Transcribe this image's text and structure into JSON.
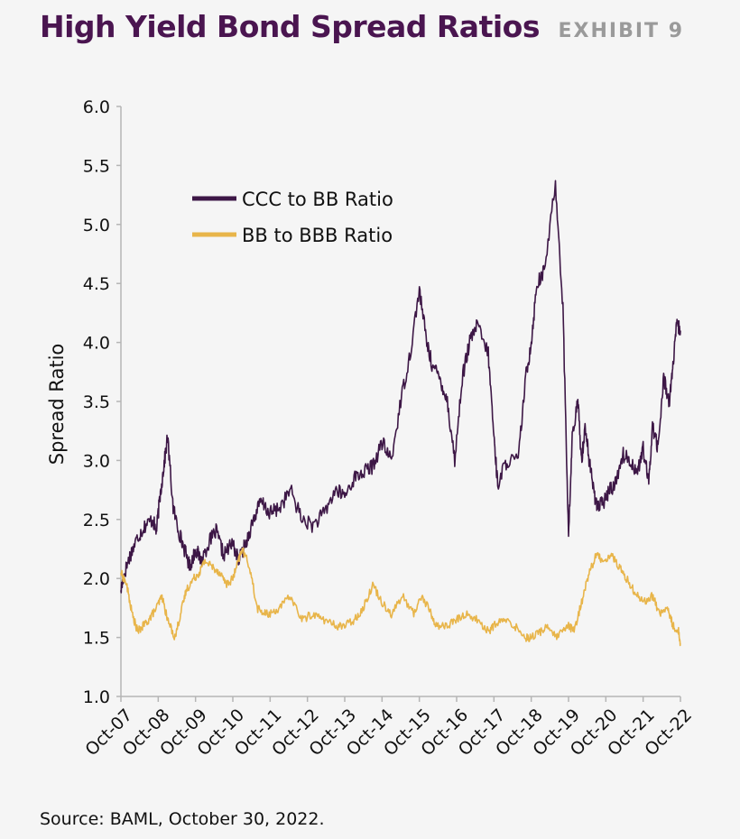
{
  "header": {
    "title": "High Yield Bond Spread Ratios",
    "exhibit": "EXHIBIT 9"
  },
  "footer": {
    "source": "Source: BAML, October 30, 2022."
  },
  "colors": {
    "title": "#4a1550",
    "ccc_bb": "#3d1746",
    "bb_bbb": "#e8b54a",
    "axis": "#b5b5b5"
  },
  "chart_data": {
    "type": "line",
    "title": "High Yield Bond Spread Ratios",
    "xlabel": "",
    "ylabel": "Spread Ratio",
    "ylim": [
      1.0,
      6.0
    ],
    "yticks": [
      "1.0",
      "1.5",
      "2.0",
      "2.5",
      "3.0",
      "3.5",
      "4.0",
      "4.5",
      "5.0",
      "5.5",
      "6.0"
    ],
    "xlim": [
      2007.75,
      2022.75
    ],
    "xticks": [
      "Oct-07",
      "Oct-08",
      "Oct-09",
      "Oct-10",
      "Oct-11",
      "Oct-12",
      "Oct-13",
      "Oct-14",
      "Oct-15",
      "Oct-16",
      "Oct-17",
      "Oct-18",
      "Oct-19",
      "Oct-20",
      "Oct-21",
      "Oct-22"
    ],
    "legend_position": "top-left",
    "grid": false,
    "series": [
      {
        "name": "CCC to BB Ratio",
        "color": "#3d1746",
        "x": [
          2007.75,
          2007.85,
          2008.0,
          2008.2,
          2008.4,
          2008.6,
          2008.7,
          2008.8,
          2008.9,
          2009.0,
          2009.15,
          2009.3,
          2009.45,
          2009.6,
          2009.75,
          2009.9,
          2010.1,
          2010.3,
          2010.5,
          2010.75,
          2010.9,
          2011.1,
          2011.3,
          2011.5,
          2011.75,
          2012.0,
          2012.3,
          2012.6,
          2012.9,
          2013.2,
          2013.5,
          2013.75,
          2014.0,
          2014.25,
          2014.5,
          2014.75,
          2015.0,
          2015.25,
          2015.5,
          2015.75,
          2015.95,
          2016.1,
          2016.3,
          2016.5,
          2016.7,
          2016.9,
          2017.1,
          2017.3,
          2017.6,
          2017.75,
          2017.85,
          2018.1,
          2018.4,
          2018.6,
          2018.75,
          2018.9,
          2019.1,
          2019.4,
          2019.6,
          2019.75,
          2019.85,
          2020.0,
          2020.1,
          2020.2,
          2020.3,
          2020.45,
          2020.55,
          2020.7,
          2020.85,
          2021.0,
          2021.2,
          2021.4,
          2021.6,
          2021.75,
          2021.9,
          2022.0,
          2022.15,
          2022.3,
          2022.45,
          2022.55,
          2022.65,
          2022.75
        ],
        "values": [
          1.9,
          2.05,
          2.2,
          2.35,
          2.45,
          2.5,
          2.4,
          2.7,
          2.95,
          3.2,
          2.6,
          2.4,
          2.25,
          2.1,
          2.25,
          2.15,
          2.3,
          2.4,
          2.2,
          2.3,
          2.15,
          2.3,
          2.5,
          2.65,
          2.55,
          2.6,
          2.75,
          2.5,
          2.45,
          2.55,
          2.75,
          2.7,
          2.85,
          2.9,
          2.95,
          3.15,
          3.0,
          3.5,
          3.9,
          4.45,
          4.0,
          3.8,
          3.7,
          3.5,
          3.0,
          3.7,
          4.0,
          4.15,
          3.9,
          3.2,
          2.8,
          3.0,
          3.0,
          3.7,
          4.0,
          4.5,
          4.6,
          5.35,
          4.3,
          2.35,
          3.2,
          3.5,
          3.0,
          3.3,
          3.0,
          2.7,
          2.6,
          2.65,
          2.75,
          2.8,
          3.05,
          3.0,
          2.9,
          3.1,
          2.8,
          3.3,
          3.1,
          3.7,
          3.5,
          3.8,
          4.15,
          4.1
        ]
      },
      {
        "name": "BB to BBB Ratio",
        "color": "#e8b54a",
        "x": [
          2007.75,
          2007.9,
          2008.05,
          2008.2,
          2008.35,
          2008.5,
          2008.7,
          2008.85,
          2009.0,
          2009.2,
          2009.35,
          2009.5,
          2009.7,
          2009.85,
          2010.0,
          2010.2,
          2010.4,
          2010.6,
          2010.75,
          2010.9,
          2011.0,
          2011.2,
          2011.4,
          2011.6,
          2011.75,
          2012.0,
          2012.3,
          2012.6,
          2012.9,
          2013.2,
          2013.5,
          2013.75,
          2014.0,
          2014.25,
          2014.5,
          2014.75,
          2015.0,
          2015.3,
          2015.6,
          2015.8,
          2016.0,
          2016.2,
          2016.5,
          2016.75,
          2017.0,
          2017.3,
          2017.6,
          2017.75,
          2018.0,
          2018.3,
          2018.6,
          2018.75,
          2019.0,
          2019.2,
          2019.4,
          2019.6,
          2019.75,
          2019.9,
          2020.1,
          2020.3,
          2020.5,
          2020.7,
          2020.9,
          2021.1,
          2021.3,
          2021.5,
          2021.75,
          2022.0,
          2022.2,
          2022.4,
          2022.55,
          2022.7,
          2022.75
        ],
        "values": [
          2.05,
          1.95,
          1.7,
          1.55,
          1.6,
          1.65,
          1.75,
          1.85,
          1.65,
          1.5,
          1.7,
          1.9,
          2.0,
          2.05,
          2.15,
          2.1,
          2.05,
          1.95,
          2.0,
          2.15,
          2.25,
          2.1,
          1.75,
          1.7,
          1.7,
          1.75,
          1.85,
          1.65,
          1.7,
          1.65,
          1.6,
          1.6,
          1.65,
          1.75,
          1.95,
          1.8,
          1.7,
          1.85,
          1.7,
          1.85,
          1.75,
          1.6,
          1.6,
          1.65,
          1.7,
          1.65,
          1.55,
          1.6,
          1.65,
          1.6,
          1.5,
          1.5,
          1.55,
          1.6,
          1.5,
          1.55,
          1.6,
          1.55,
          1.8,
          2.05,
          2.2,
          2.15,
          2.2,
          2.1,
          2.0,
          1.9,
          1.8,
          1.85,
          1.7,
          1.75,
          1.6,
          1.55,
          1.45
        ]
      }
    ]
  }
}
